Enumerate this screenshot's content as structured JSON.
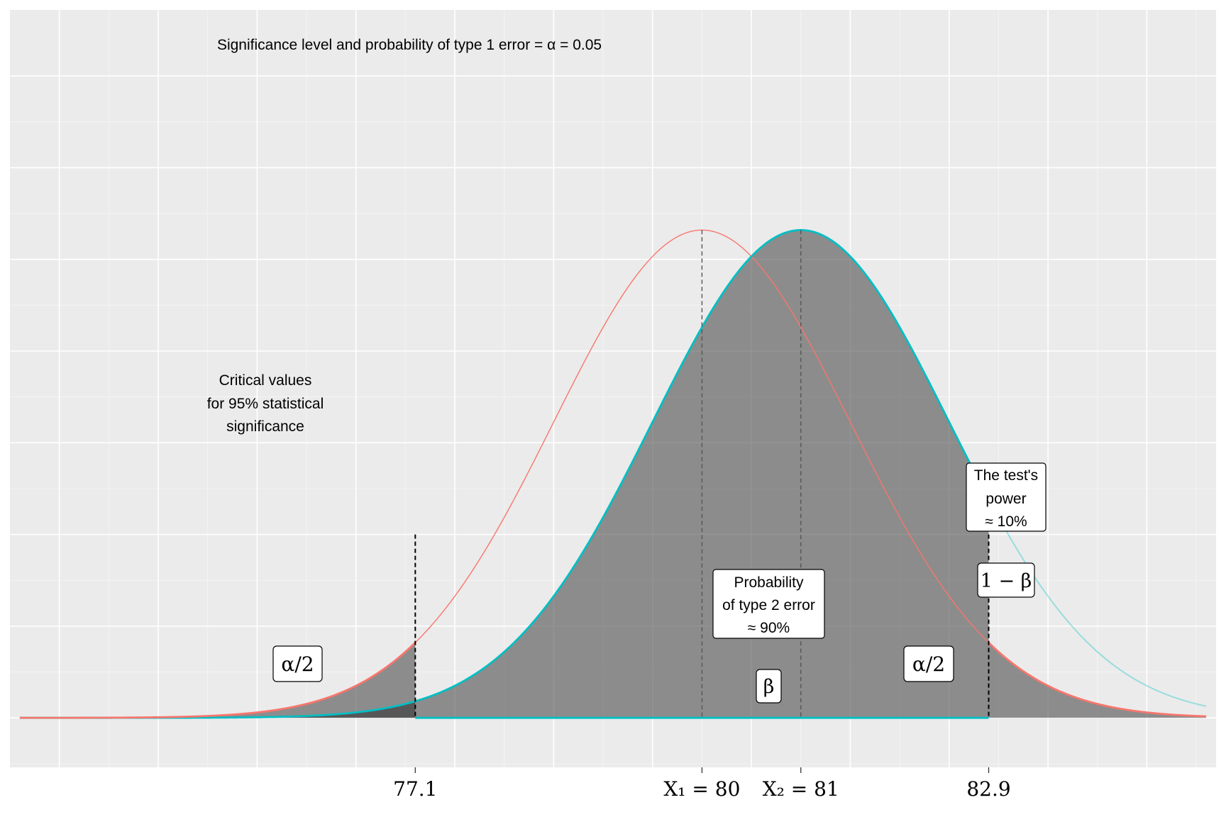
{
  "chart_data": {
    "type": "area",
    "title": "Significance level and probability of type 1 error  = α = 0.05",
    "xlabel": "",
    "ylabel": "",
    "xlim": [
      73,
      85.2
    ],
    "ylim": [
      -0.027,
      0.386
    ],
    "grid": true,
    "series": [
      {
        "color": "#F8766D",
        "mean": 80,
        "sd": 1.5
      },
      {
        "color": "#00BFC4",
        "mean": 81,
        "sd": 1.5
      }
    ],
    "x_ticks": [
      {
        "value": 77.1,
        "label": "77.1"
      },
      {
        "value": 80,
        "label": "X₁ = 80"
      },
      {
        "value": 81,
        "label": "X₂ = 81"
      },
      {
        "value": 82.9,
        "label": "82.9"
      }
    ],
    "critical_values": [
      77.1,
      82.9
    ],
    "annotations": {
      "critical_note": [
        "Critical values",
        "for 95% statistical",
        "significance"
      ],
      "alpha_half_label": "α/2",
      "type2_box": [
        "Probability",
        "of type 2 error",
        "≈ 90%"
      ],
      "beta_label": "β",
      "power_box": [
        "The test's",
        "power",
        "≈ 10%"
      ],
      "one_minus_beta_label": "1 − β"
    }
  }
}
